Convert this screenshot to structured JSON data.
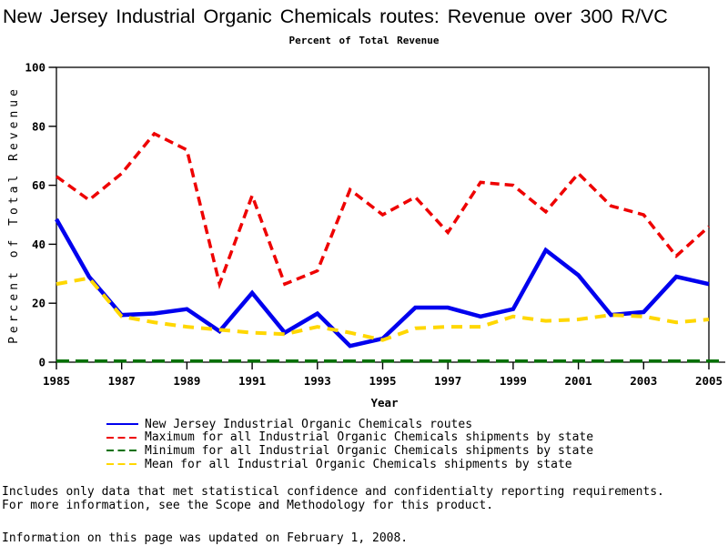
{
  "page": {
    "title": "New Jersey Industrial Organic Chemicals routes: Revenue over 300 R/VC",
    "subtitle": "Percent of Total Revenue"
  },
  "chart_data": {
    "type": "line",
    "title": "New Jersey Industrial Organic Chemicals routes: Revenue over 300 R/VC",
    "subtitle": "Percent of Total Revenue",
    "xlabel": "Year",
    "ylabel": "Percent of Total Revenue",
    "xlim": [
      1985,
      2005
    ],
    "ylim": [
      0,
      100
    ],
    "x_ticks": [
      1985,
      1987,
      1989,
      1991,
      1993,
      1995,
      1997,
      1999,
      2001,
      2003,
      2005
    ],
    "y_ticks": [
      0,
      20,
      40,
      60,
      80,
      100
    ],
    "grid": false,
    "legend_position": "bottom-left",
    "x": [
      1985,
      1986,
      1987,
      1988,
      1989,
      1990,
      1991,
      1992,
      1993,
      1994,
      1995,
      1996,
      1997,
      1998,
      1999,
      2000,
      2001,
      2002,
      2003,
      2004,
      2005
    ],
    "series": [
      {
        "name": "New Jersey Industrial Organic Chemicals routes",
        "color": "#0000ee",
        "dash": "solid",
        "width": 4.5,
        "values": [
          48.5,
          29,
          16,
          16.5,
          18,
          10.5,
          23.5,
          10,
          16.5,
          5.5,
          8,
          18.5,
          18.5,
          15.5,
          18,
          38,
          29.5,
          16,
          17,
          29,
          26.5
        ]
      },
      {
        "name": "Maximum for all Industrial Organic Chemicals shipments by state",
        "color": "#ee0000",
        "dash": "10,6",
        "width": 3.5,
        "values": [
          63,
          55,
          64,
          77.5,
          72,
          26.5,
          56.5,
          26.5,
          31,
          58.5,
          50,
          56,
          44,
          61,
          60,
          51,
          64,
          53,
          50,
          36,
          46
        ]
      },
      {
        "name": "Minimum for all Industrial Organic Chemicals shipments by state",
        "color": "#007000",
        "dash": "14,7",
        "width": 3.5,
        "values": [
          0.4,
          0.4,
          0.4,
          0.4,
          0.4,
          0.4,
          0.4,
          0.4,
          0.4,
          0.4,
          0.4,
          0.4,
          0.4,
          0.4,
          0.4,
          0.4,
          0.4,
          0.4,
          0.4,
          0.4,
          0.4
        ]
      },
      {
        "name": "Mean for all Industrial Organic Chemicals shipments by state",
        "color": "#ffd700",
        "dash": "12,8",
        "width": 4,
        "values": [
          26.5,
          28.5,
          15.5,
          13.5,
          12,
          11,
          10,
          9.5,
          12,
          10,
          7.5,
          11.5,
          12,
          12,
          15.5,
          14,
          14.5,
          16,
          15.5,
          13.5,
          14.5
        ]
      }
    ]
  },
  "footer": {
    "note_line1": "Includes only data that met statistical confidence and confidentialty reporting requirements.",
    "note_line2": "For more information, see the Scope and Methodology for this product.",
    "updated": "Information on this page was updated on February 1, 2008."
  }
}
